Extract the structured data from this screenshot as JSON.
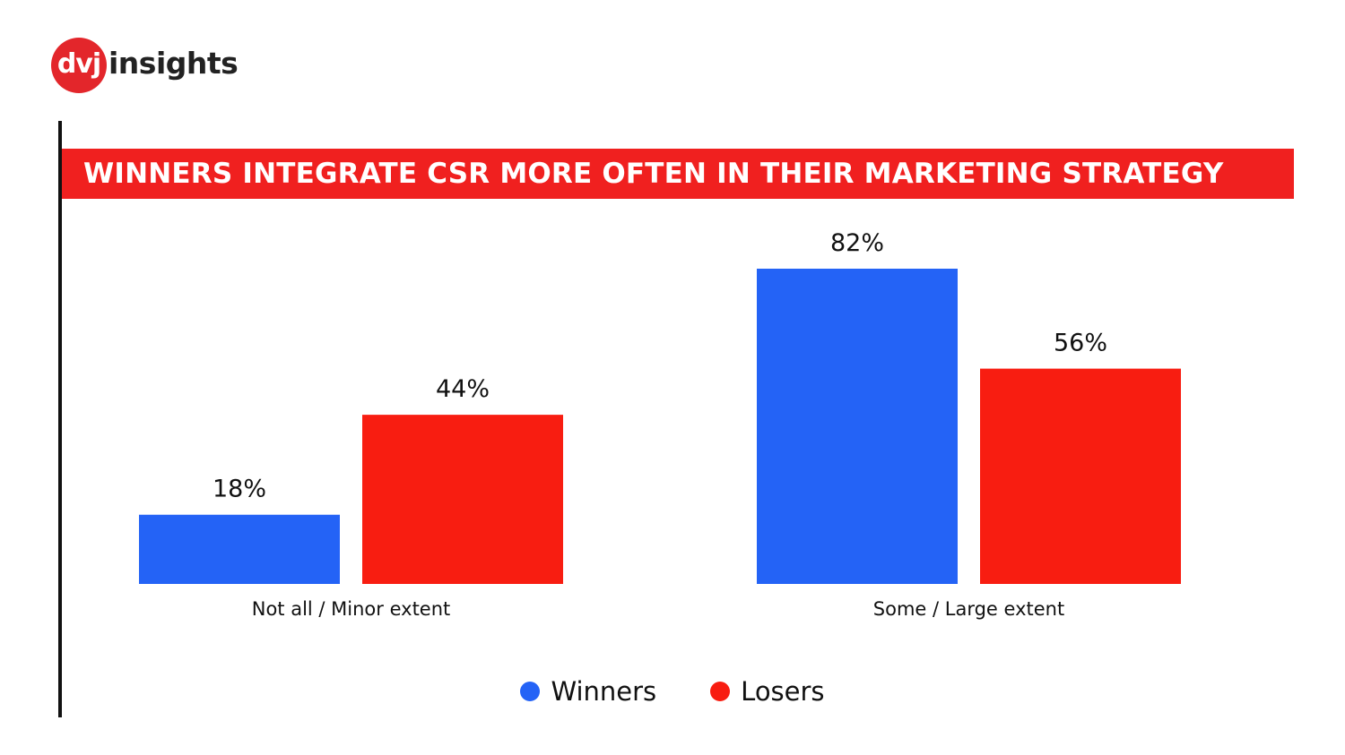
{
  "brand": {
    "badge": "dvj",
    "word": "insights"
  },
  "chart_data": {
    "type": "bar",
    "title": "WINNERS INTEGRATE CSR MORE OFTEN IN THEIR MARKETING STRATEGY",
    "categories": [
      "Not all / Minor extent",
      "Some / Large extent"
    ],
    "series": [
      {
        "name": "Winners",
        "values": [
          18,
          82
        ],
        "color": "#2463f6"
      },
      {
        "name": "Losers",
        "values": [
          44,
          56
        ],
        "color": "#f81d11"
      }
    ],
    "value_suffix": "%",
    "ylim": [
      0,
      100
    ],
    "xlabel": "",
    "ylabel": "",
    "legend_position": "bottom-center"
  }
}
